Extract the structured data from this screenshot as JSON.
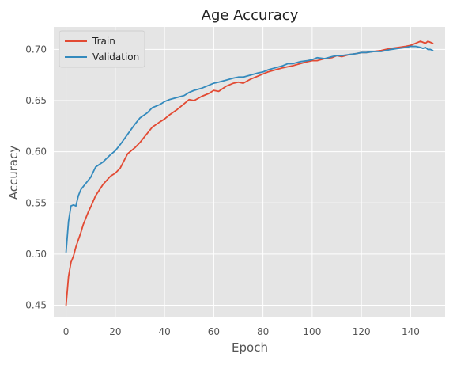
{
  "chart_data": {
    "type": "line",
    "title": "Age Accuracy",
    "xlabel": "Epoch",
    "ylabel": "Accuracy",
    "xlim": [
      -5,
      154
    ],
    "ylim": [
      0.438,
      0.722
    ],
    "xticks": [
      0,
      20,
      40,
      60,
      80,
      100,
      120,
      140
    ],
    "yticks": [
      0.45,
      0.5,
      0.55,
      0.6,
      0.65,
      0.7
    ],
    "xtick_labels": [
      "0",
      "20",
      "40",
      "60",
      "80",
      "100",
      "120",
      "140"
    ],
    "ytick_labels": [
      "0.45",
      "0.50",
      "0.55",
      "0.60",
      "0.65",
      "0.70"
    ],
    "grid": true,
    "legend_position": "top-left",
    "background": "#e5e5e5",
    "series": [
      {
        "name": "Train",
        "color": "#e24a33",
        "x_points": [
          0,
          1,
          2,
          3,
          4,
          5,
          6,
          7,
          8,
          9,
          10,
          12,
          15,
          18,
          20,
          22,
          25,
          28,
          30,
          33,
          35,
          38,
          40,
          42,
          45,
          48,
          50,
          52,
          55,
          58,
          60,
          62,
          65,
          68,
          70,
          72,
          75,
          78,
          80,
          82,
          85,
          88,
          90,
          92,
          95,
          98,
          100,
          102,
          105,
          108,
          110,
          112,
          115,
          118,
          120,
          122,
          125,
          128,
          130,
          132,
          135,
          138,
          140,
          142,
          144,
          145,
          146,
          147,
          148,
          149
        ],
        "y_points": [
          0.45,
          0.478,
          0.492,
          0.498,
          0.507,
          0.514,
          0.521,
          0.529,
          0.535,
          0.541,
          0.546,
          0.557,
          0.568,
          0.576,
          0.579,
          0.584,
          0.598,
          0.604,
          0.609,
          0.618,
          0.624,
          0.629,
          0.632,
          0.636,
          0.641,
          0.647,
          0.651,
          0.65,
          0.654,
          0.657,
          0.66,
          0.659,
          0.664,
          0.667,
          0.668,
          0.667,
          0.671,
          0.674,
          0.676,
          0.678,
          0.68,
          0.682,
          0.683,
          0.684,
          0.686,
          0.688,
          0.689,
          0.689,
          0.691,
          0.692,
          0.694,
          0.693,
          0.695,
          0.696,
          0.697,
          0.697,
          0.698,
          0.699,
          0.7,
          0.701,
          0.702,
          0.703,
          0.704,
          0.706,
          0.708,
          0.707,
          0.706,
          0.708,
          0.707,
          0.706
        ]
      },
      {
        "name": "Validation",
        "color": "#348abd",
        "x_points": [
          0,
          1,
          2,
          3,
          4,
          5,
          6,
          7,
          8,
          10,
          12,
          15,
          18,
          20,
          22,
          25,
          28,
          30,
          33,
          35,
          38,
          40,
          42,
          45,
          48,
          50,
          52,
          55,
          58,
          60,
          62,
          65,
          68,
          70,
          72,
          75,
          78,
          80,
          82,
          85,
          88,
          90,
          92,
          95,
          98,
          100,
          102,
          105,
          108,
          110,
          112,
          115,
          118,
          120,
          122,
          125,
          128,
          130,
          132,
          135,
          138,
          140,
          142,
          144,
          145,
          146,
          147,
          148,
          149
        ],
        "y_points": [
          0.502,
          0.532,
          0.547,
          0.548,
          0.547,
          0.557,
          0.563,
          0.566,
          0.569,
          0.575,
          0.585,
          0.59,
          0.597,
          0.601,
          0.607,
          0.617,
          0.627,
          0.633,
          0.638,
          0.643,
          0.646,
          0.649,
          0.651,
          0.653,
          0.655,
          0.658,
          0.66,
          0.662,
          0.665,
          0.667,
          0.668,
          0.67,
          0.672,
          0.673,
          0.673,
          0.675,
          0.677,
          0.678,
          0.68,
          0.682,
          0.684,
          0.686,
          0.686,
          0.688,
          0.689,
          0.69,
          0.692,
          0.691,
          0.693,
          0.694,
          0.694,
          0.695,
          0.696,
          0.697,
          0.697,
          0.698,
          0.698,
          0.699,
          0.7,
          0.701,
          0.702,
          0.703,
          0.703,
          0.702,
          0.701,
          0.702,
          0.7,
          0.7,
          0.699
        ]
      }
    ]
  }
}
